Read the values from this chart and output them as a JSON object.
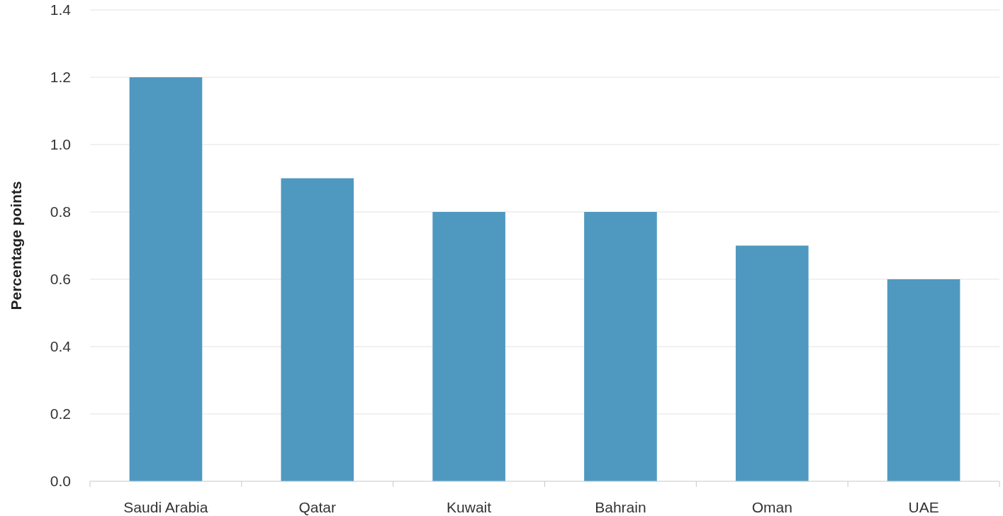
{
  "chart_data": {
    "type": "bar",
    "ylabel": "Percentage points",
    "categories": [
      "Saudi Arabia",
      "Qatar",
      "Kuwait",
      "Bahrain",
      "Oman",
      "UAE"
    ],
    "values": [
      1.2,
      0.9,
      0.8,
      0.8,
      0.7,
      0.6
    ],
    "color": "#4f99c1",
    "ylim": [
      0,
      1.4
    ],
    "yticks": [
      {
        "value": 0,
        "label": "0.0"
      },
      0.2,
      0.4,
      0.6,
      0.8,
      {
        "value": 1,
        "label": "1.0"
      },
      1.2,
      1.4
    ],
    "grid": "y"
  }
}
